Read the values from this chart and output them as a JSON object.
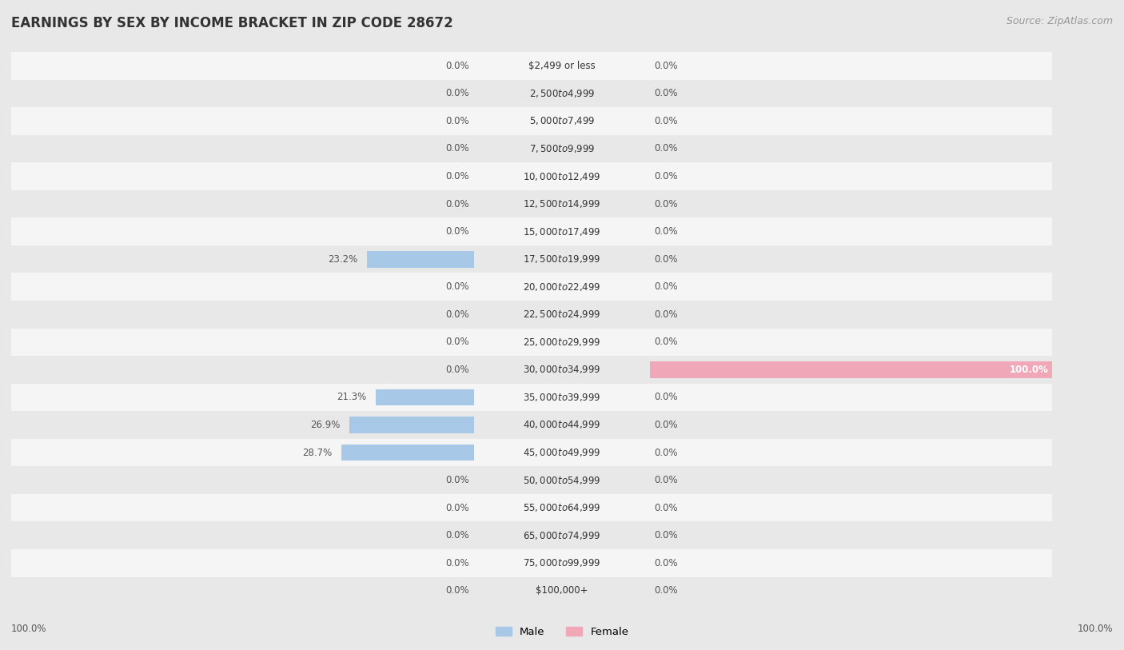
{
  "title": "EARNINGS BY SEX BY INCOME BRACKET IN ZIP CODE 28672",
  "source": "Source: ZipAtlas.com",
  "categories": [
    "$2,499 or less",
    "$2,500 to $4,999",
    "$5,000 to $7,499",
    "$7,500 to $9,999",
    "$10,000 to $12,499",
    "$12,500 to $14,999",
    "$15,000 to $17,499",
    "$17,500 to $19,999",
    "$20,000 to $22,499",
    "$22,500 to $24,999",
    "$25,000 to $29,999",
    "$30,000 to $34,999",
    "$35,000 to $39,999",
    "$40,000 to $44,999",
    "$45,000 to $49,999",
    "$50,000 to $54,999",
    "$55,000 to $64,999",
    "$65,000 to $74,999",
    "$75,000 to $99,999",
    "$100,000+"
  ],
  "male_values": [
    0.0,
    0.0,
    0.0,
    0.0,
    0.0,
    0.0,
    0.0,
    23.2,
    0.0,
    0.0,
    0.0,
    0.0,
    21.3,
    26.9,
    28.7,
    0.0,
    0.0,
    0.0,
    0.0,
    0.0
  ],
  "female_values": [
    0.0,
    0.0,
    0.0,
    0.0,
    0.0,
    0.0,
    0.0,
    0.0,
    0.0,
    0.0,
    0.0,
    100.0,
    0.0,
    0.0,
    0.0,
    0.0,
    0.0,
    0.0,
    0.0,
    0.0
  ],
  "male_color": "#a8c8e8",
  "female_color": "#f0a8b8",
  "male_label": "Male",
  "female_label": "Female",
  "bg_color": "#e8e8e8",
  "row_even_color": "#f5f5f5",
  "row_odd_color": "#e8e8e8",
  "title_fontsize": 12,
  "source_fontsize": 9,
  "label_fontsize": 8.5,
  "val_fontsize": 8.5,
  "bar_height": 0.6,
  "xlim": 100.0,
  "female_100_label_color": "#ffffff"
}
